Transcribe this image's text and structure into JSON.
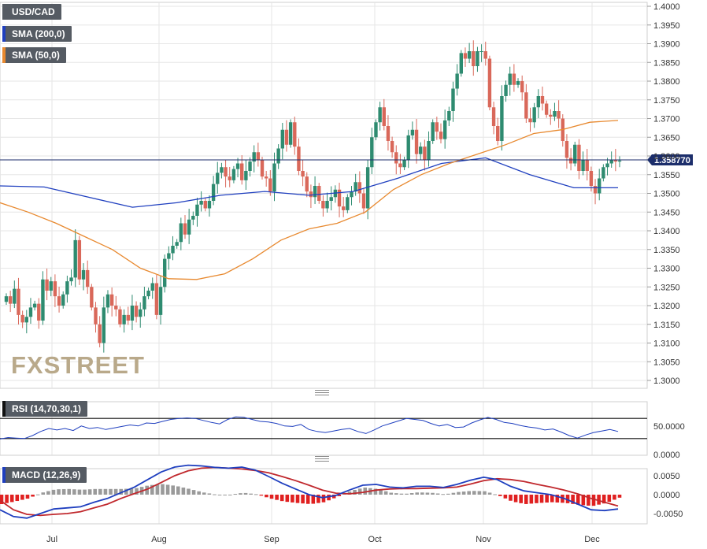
{
  "legend": {
    "pair": "USD/CAD",
    "sma200": "SMA (200,0)",
    "sma50": "SMA (50,0)",
    "rsi": "RSI (14,70,30,1)",
    "macd": "MACD (12,26,9)"
  },
  "watermark": "FXSTREET",
  "current_price_label": "1.358770",
  "colors": {
    "up": "#2e8b70",
    "down": "#d9685a",
    "sma200": "#1f3fbf",
    "sma50": "#e8892f",
    "pair_swatch": "#555b63",
    "macd_line": "#1f3fbf",
    "signal_line": "#c0282d",
    "hist_pos": "#9a9a9a",
    "hist_neg": "#e02020"
  },
  "chart_data": [
    {
      "type": "candlestick",
      "title": "USD/CAD",
      "x_ticks": [
        "Jul",
        "Aug",
        "Sep",
        "Oct",
        "Nov",
        "Dec"
      ],
      "y_ticks": [
        "1.4000",
        "1.3950",
        "1.3900",
        "1.3850",
        "1.3800",
        "1.3750",
        "1.3700",
        "1.3650",
        "1.3600",
        "1.3550",
        "1.3500",
        "1.3450",
        "1.3400",
        "1.3350",
        "1.3300",
        "1.3250",
        "1.3200",
        "1.3150",
        "1.3100",
        "1.3050",
        "1.3000"
      ],
      "ylim": [
        1.2975,
        1.4015
      ],
      "closes": [
        1.3225,
        1.3205,
        1.3245,
        1.3175,
        1.3155,
        1.317,
        1.3195,
        1.3205,
        1.316,
        1.327,
        1.324,
        1.3265,
        1.3225,
        1.32,
        1.323,
        1.3265,
        1.3275,
        1.3375,
        1.327,
        1.3295,
        1.325,
        1.3195,
        1.315,
        1.31,
        1.3195,
        1.323,
        1.32,
        1.319,
        1.315,
        1.3175,
        1.316,
        1.32,
        1.317,
        1.319,
        1.3225,
        1.324,
        1.326,
        1.3175,
        1.325,
        1.3325,
        1.334,
        1.336,
        1.337,
        1.342,
        1.339,
        1.343,
        1.344,
        1.347,
        1.348,
        1.346,
        1.348,
        1.3525,
        1.3555,
        1.357,
        1.3545,
        1.3535,
        1.3565,
        1.358,
        1.3535,
        1.356,
        1.3585,
        1.361,
        1.359,
        1.3545,
        1.354,
        1.3505,
        1.358,
        1.362,
        1.367,
        1.363,
        1.369,
        1.3625,
        1.356,
        1.3545,
        1.3505,
        1.349,
        1.352,
        1.348,
        1.346,
        1.348,
        1.349,
        1.351,
        1.3465,
        1.3455,
        1.349,
        1.3505,
        1.353,
        1.35,
        1.346,
        1.357,
        1.365,
        1.369,
        1.373,
        1.368,
        1.364,
        1.361,
        1.358,
        1.357,
        1.359,
        1.3655,
        1.367,
        1.3605,
        1.3625,
        1.359,
        1.364,
        1.369,
        1.3665,
        1.3645,
        1.3695,
        1.372,
        1.378,
        1.382,
        1.3875,
        1.386,
        1.388,
        1.384,
        1.388,
        1.388,
        1.386,
        1.373,
        1.368,
        1.364,
        1.376,
        1.379,
        1.382,
        1.379,
        1.38,
        1.377,
        1.37,
        1.369,
        1.373,
        1.376,
        1.374,
        1.371,
        1.3705,
        1.372,
        1.37,
        1.364,
        1.3595,
        1.358,
        1.363,
        1.356,
        1.359,
        1.356,
        1.352,
        1.35,
        1.354,
        1.357,
        1.358,
        1.359,
        1.3585,
        1.35877
      ],
      "series": [
        {
          "name": "SMA (200,0)",
          "values": [
            1.352,
            1.3517,
            1.349,
            1.3463,
            1.3475,
            1.3495,
            1.3505,
            1.3495,
            1.3505,
            1.354,
            1.358,
            1.3595,
            1.355,
            1.3515,
            1.3515
          ]
        },
        {
          "name": "SMA (50,0)",
          "values": [
            1.3475,
            1.345,
            1.342,
            1.3385,
            1.335,
            1.33,
            1.3272,
            1.327,
            1.3285,
            1.3325,
            1.3375,
            1.3405,
            1.342,
            1.345,
            1.351,
            1.355,
            1.358,
            1.3605,
            1.363,
            1.366,
            1.367,
            1.369,
            1.3695
          ]
        }
      ]
    },
    {
      "type": "line",
      "title": "RSI (14,70,30,1)",
      "y_ticks": [
        "50.0000",
        "0.0000"
      ],
      "levels": [
        70,
        30
      ],
      "ylim": [
        0,
        100
      ],
      "values": [
        29,
        32,
        31,
        30,
        36,
        44,
        50,
        47,
        50,
        46,
        55,
        50,
        52,
        48,
        51,
        54,
        57,
        55,
        61,
        60,
        64,
        68,
        70,
        71,
        70,
        66,
        62,
        59,
        68,
        73,
        72,
        68,
        64,
        63,
        60,
        55,
        54,
        58,
        48,
        44,
        42,
        45,
        48,
        50,
        44,
        40,
        47,
        55,
        60,
        65,
        70,
        68,
        66,
        60,
        55,
        58,
        52,
        53,
        61,
        67,
        72,
        68,
        62,
        60,
        56,
        53,
        51,
        47,
        49,
        43,
        36,
        31,
        37,
        42,
        45,
        48,
        44
      ]
    },
    {
      "type": "bar+line",
      "title": "MACD (12,26,9)",
      "y_ticks": [
        "0.0050",
        "0.0000",
        "-0.0050"
      ],
      "ylim": [
        -0.0075,
        0.0075
      ],
      "series": [
        {
          "name": "macd",
          "values": [
            -0.004,
            -0.0058,
            -0.0062,
            -0.005,
            -0.0038,
            -0.0035,
            -0.0032,
            -0.002,
            -0.001,
            0.0005,
            0.002,
            0.004,
            0.006,
            0.0073,
            0.0078,
            0.0076,
            0.0072,
            0.007,
            0.0073,
            0.0065,
            0.0048,
            0.003,
            0.0015,
            0.0,
            -0.0008,
            -0.0002,
            0.0012,
            0.0025,
            0.0027,
            0.002,
            0.0018,
            0.0022,
            0.0022,
            0.0019,
            0.0027,
            0.0038,
            0.0046,
            0.004,
            0.0022,
            0.001,
            0.0005,
            0.0,
            -0.001,
            -0.0025,
            -0.004,
            -0.0042,
            -0.0038
          ]
        },
        {
          "name": "signal",
          "values": [
            -0.0015,
            -0.004,
            -0.0052,
            -0.0055,
            -0.0052,
            -0.005,
            -0.0045,
            -0.0035,
            -0.0025,
            -0.001,
            0.0003,
            0.0015,
            0.0032,
            0.005,
            0.0063,
            0.007,
            0.0072,
            0.007,
            0.0068,
            0.0064,
            0.0058,
            0.0048,
            0.0037,
            0.0025,
            0.0012,
            0.0004,
            0.0002,
            0.0006,
            0.0012,
            0.0015,
            0.0016,
            0.0016,
            0.0017,
            0.0018,
            0.002,
            0.0028,
            0.0037,
            0.0042,
            0.004,
            0.0035,
            0.0027,
            0.002,
            0.0012,
            0.0002,
            -0.001,
            -0.002,
            -0.003
          ]
        }
      ]
    }
  ]
}
